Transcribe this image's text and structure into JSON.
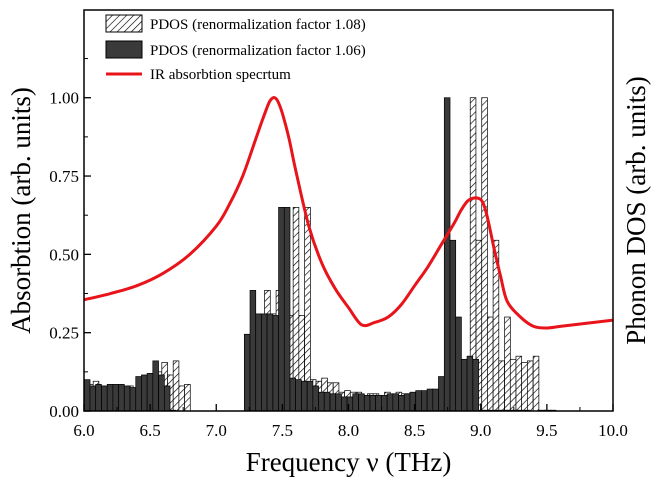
{
  "chart_data": {
    "type": "bar",
    "xlabel": "Frequency ν (THz)",
    "ylabel": "Absorbtion (arb. units)",
    "y2label": "Phonon DOS (arb. units)",
    "xlim": [
      6.0,
      10.0
    ],
    "ylim": [
      0,
      1.28
    ],
    "xticks": [
      6.0,
      6.5,
      7.0,
      7.5,
      8.0,
      8.5,
      9.0,
      9.5,
      10.0
    ],
    "xtick_labels": [
      "6.0",
      "6.5",
      "7.0",
      "7.5",
      "8.0",
      "8.5",
      "9.0",
      "9.5",
      "10.0"
    ],
    "yticks": [
      0.0,
      0.25,
      0.5,
      0.75,
      1.0
    ],
    "ytick_labels": [
      "0.00",
      "0.25",
      "0.50",
      "0.75",
      "1.00"
    ],
    "legend_position": "top-left",
    "grid": false,
    "series": [
      {
        "name": "PDOS (renormalization factor 1.08)",
        "style": "hatched",
        "color": "#ffffff",
        "bin_width": 0.0432,
        "x": [
          6.048,
          6.091,
          6.134,
          6.178,
          6.221,
          6.264,
          6.307,
          6.35,
          6.394,
          6.437,
          6.48,
          6.523,
          6.566,
          6.61,
          6.653,
          6.696,
          6.739,
          6.782,
          7.301,
          7.344,
          7.387,
          7.43,
          7.474,
          7.517,
          7.56,
          7.603,
          7.646,
          7.69,
          7.733,
          7.776,
          7.819,
          7.862,
          7.906,
          7.949,
          7.992,
          8.035,
          8.078,
          8.122,
          8.165,
          8.208,
          8.251,
          8.294,
          8.338,
          8.381,
          8.424,
          8.467,
          8.51,
          8.554,
          8.597,
          8.64,
          8.683,
          8.726,
          8.77,
          8.813,
          8.856,
          8.899,
          8.942,
          8.986,
          9.029,
          9.072,
          9.115,
          9.158,
          9.202,
          9.245,
          9.288,
          9.331,
          9.374,
          9.418,
          9.461,
          9.504,
          9.547
        ],
        "values": [
          0.085,
          0.095,
          0.08,
          0.075,
          0.08,
          0.085,
          0.075,
          0.08,
          0.07,
          0.07,
          0.11,
          0.12,
          0.125,
          0.155,
          0.115,
          0.16,
          0.08,
          0.085,
          0.25,
          0.245,
          0.385,
          0.31,
          0.385,
          0.305,
          0.305,
          0.65,
          0.305,
          0.65,
          0.1,
          0.095,
          0.105,
          0.09,
          0.09,
          0.06,
          0.065,
          0.06,
          0.06,
          0.045,
          0.055,
          0.055,
          0.05,
          0.06,
          0.05,
          0.06,
          0.055,
          0.055,
          0.055,
          0.06,
          0.055,
          0.06,
          0.065,
          0.065,
          0.065,
          0.07,
          0.07,
          0.11,
          1.0,
          0.545,
          1.0,
          0.3,
          0.545,
          0.16,
          0.3,
          0.165,
          0.175,
          0.155,
          0.16,
          0.175,
          0.0,
          0.0,
          0.0
        ]
      },
      {
        "name": "PDOS (renormalization factor 1.06)",
        "style": "solid",
        "color": "#3a3a3a",
        "bin_width": 0.0432,
        "x": [
          6.024,
          6.067,
          6.11,
          6.154,
          6.197,
          6.24,
          6.283,
          6.326,
          6.37,
          6.413,
          6.456,
          6.499,
          6.542,
          6.586,
          6.629,
          6.672,
          7.234,
          7.277,
          7.32,
          7.363,
          7.406,
          7.45,
          7.493,
          7.536,
          7.579,
          7.622,
          7.666,
          7.709,
          7.752,
          7.795,
          7.838,
          7.882,
          7.925,
          7.968,
          8.011,
          8.054,
          8.098,
          8.141,
          8.184,
          8.227,
          8.27,
          8.314,
          8.357,
          8.4,
          8.443,
          8.486,
          8.53,
          8.573,
          8.616,
          8.659,
          8.702,
          8.746,
          8.789,
          8.832,
          8.875,
          8.918,
          8.962,
          9.005,
          9.048,
          9.091,
          9.134,
          9.178,
          9.221,
          9.264,
          9.307,
          9.35
        ],
        "values": [
          0.1,
          0.08,
          0.085,
          0.08,
          0.085,
          0.085,
          0.085,
          0.08,
          0.075,
          0.11,
          0.115,
          0.12,
          0.16,
          0.115,
          0.08,
          0.0,
          0.245,
          0.385,
          0.31,
          0.31,
          0.31,
          0.305,
          0.65,
          0.65,
          0.105,
          0.1,
          0.095,
          0.095,
          0.08,
          0.06,
          0.06,
          0.055,
          0.055,
          0.045,
          0.045,
          0.055,
          0.055,
          0.05,
          0.05,
          0.05,
          0.05,
          0.055,
          0.055,
          0.05,
          0.055,
          0.06,
          0.065,
          0.065,
          0.07,
          0.07,
          0.11,
          1.0,
          0.545,
          0.3,
          0.165,
          0.175,
          0.165,
          0.0,
          0.0,
          0.0,
          0.0,
          0.0,
          0.0,
          0.0,
          0.0,
          0.0
        ]
      },
      {
        "name": "IR absorbtion specrtum",
        "style": "line",
        "color": "#e8141a",
        "x": [
          6.0,
          6.2,
          6.4,
          6.6,
          6.8,
          7.0,
          7.1,
          7.2,
          7.3,
          7.35,
          7.4,
          7.43,
          7.45,
          7.47,
          7.5,
          7.55,
          7.6,
          7.7,
          7.8,
          7.9,
          8.0,
          8.1,
          8.2,
          8.3,
          8.4,
          8.5,
          8.6,
          8.7,
          8.8,
          8.85,
          8.9,
          8.95,
          9.0,
          9.03,
          9.06,
          9.1,
          9.15,
          9.2,
          9.3,
          9.4,
          9.5,
          9.6,
          9.8,
          10.0
        ],
        "values": [
          0.355,
          0.375,
          0.4,
          0.44,
          0.5,
          0.59,
          0.66,
          0.75,
          0.87,
          0.93,
          0.985,
          1.0,
          0.998,
          0.985,
          0.95,
          0.87,
          0.77,
          0.59,
          0.47,
          0.39,
          0.33,
          0.275,
          0.283,
          0.3,
          0.34,
          0.4,
          0.46,
          0.53,
          0.6,
          0.64,
          0.67,
          0.68,
          0.675,
          0.65,
          0.6,
          0.52,
          0.43,
          0.35,
          0.3,
          0.27,
          0.265,
          0.27,
          0.28,
          0.29
        ]
      }
    ]
  }
}
